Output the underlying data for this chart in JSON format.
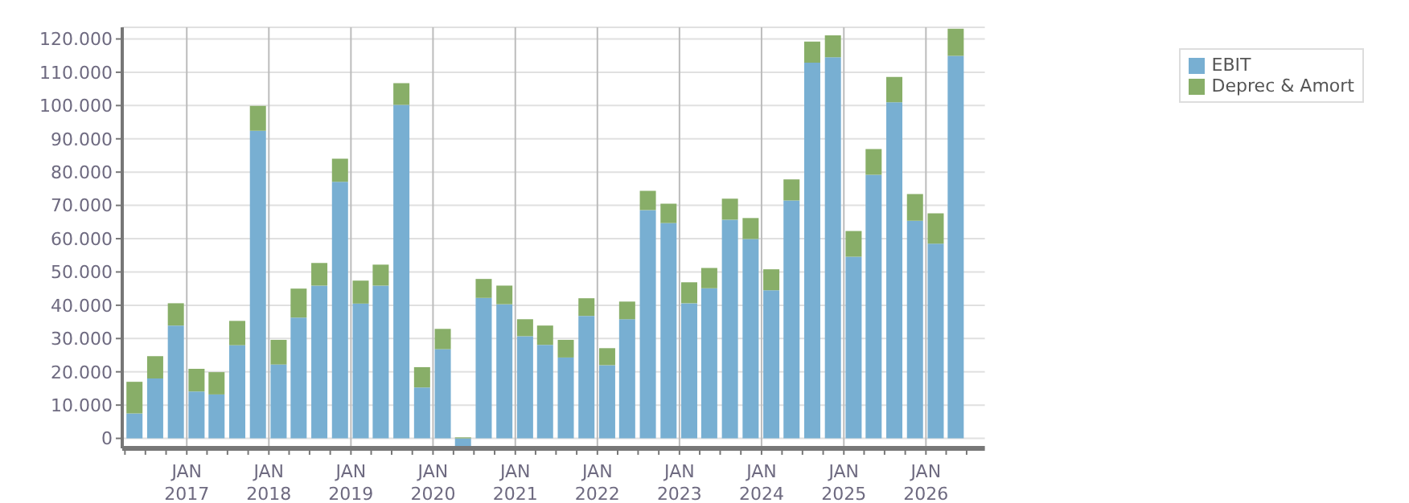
{
  "chart_data": {
    "type": "bar",
    "stacked": true,
    "x": [
      "2016-05-15",
      "2016-08-15",
      "2016-11-15",
      "2017-02-15",
      "2017-05-15",
      "2017-08-15",
      "2017-11-15",
      "2018-02-15",
      "2018-05-15",
      "2018-08-15",
      "2018-11-15",
      "2019-02-15",
      "2019-05-15",
      "2019-08-15",
      "2019-11-15",
      "2020-02-15",
      "2020-05-15",
      "2020-08-15",
      "2020-11-15",
      "2021-02-15",
      "2021-05-15",
      "2021-08-15",
      "2021-11-15",
      "2022-02-15",
      "2022-05-15",
      "2022-08-15",
      "2022-11-15",
      "2023-02-15",
      "2023-05-15",
      "2023-08-15",
      "2023-11-15",
      "2024-02-15",
      "2024-05-15",
      "2024-08-15",
      "2024-11-15",
      "2025-02-15",
      "2025-05-15",
      "2025-08-15",
      "2025-11-15",
      "2026-02-15",
      "2026-05-15"
    ],
    "series": [
      {
        "name": "EBIT",
        "color": "#78afd2",
        "values": [
          7500,
          18000,
          33900,
          14100,
          13200,
          28000,
          92400,
          22200,
          36300,
          45900,
          77100,
          40500,
          45900,
          100200,
          15300,
          26800,
          -2900,
          42200,
          40300,
          30700,
          28100,
          24300,
          36800,
          22000,
          35800,
          68600,
          64700,
          40600,
          45100,
          65700,
          59900,
          44500,
          71500,
          112900,
          114500,
          54600,
          79200,
          101000,
          65400,
          58500,
          114900
        ]
      },
      {
        "name": "Deprec & Amort",
        "color": "#88ae68",
        "values": [
          9500,
          6700,
          6700,
          6800,
          6700,
          7300,
          7500,
          7400,
          8700,
          6800,
          6900,
          6900,
          6300,
          6500,
          6100,
          6100,
          300,
          5700,
          5600,
          5100,
          5800,
          5300,
          5300,
          5100,
          5300,
          5800,
          5800,
          6300,
          6100,
          6300,
          6300,
          6300,
          6300,
          6300,
          6600,
          7700,
          7700,
          7600,
          8000,
          9100,
          8200
        ]
      }
    ],
    "xlim": [
      "2016-03-20",
      "2026-09-20"
    ],
    "xticks": [
      {
        "value": "2016-04",
        "label": null
      },
      {
        "value": "2016-07",
        "label": null
      },
      {
        "value": "2016-10",
        "label": null
      },
      {
        "value": "2017-01",
        "label": "JAN 2017"
      },
      {
        "value": "2017-04",
        "label": null
      },
      {
        "value": "2017-07",
        "label": null
      },
      {
        "value": "2017-10",
        "label": null
      },
      {
        "value": "2018-01",
        "label": "JAN 2018"
      },
      {
        "value": "2018-04",
        "label": null
      },
      {
        "value": "2018-07",
        "label": null
      },
      {
        "value": "2018-10",
        "label": null
      },
      {
        "value": "2019-01",
        "label": "JAN 2019"
      },
      {
        "value": "2019-04",
        "label": null
      },
      {
        "value": "2019-07",
        "label": null
      },
      {
        "value": "2019-10",
        "label": null
      },
      {
        "value": "2020-01",
        "label": "JAN 2020"
      },
      {
        "value": "2020-04",
        "label": null
      },
      {
        "value": "2020-07",
        "label": null
      },
      {
        "value": "2020-10",
        "label": null
      },
      {
        "value": "2021-01",
        "label": "JAN 2021"
      },
      {
        "value": "2021-04",
        "label": null
      },
      {
        "value": "2021-07",
        "label": null
      },
      {
        "value": "2021-10",
        "label": null
      },
      {
        "value": "2022-01",
        "label": "JAN 2022"
      },
      {
        "value": "2022-04",
        "label": null
      },
      {
        "value": "2022-07",
        "label": null
      },
      {
        "value": "2022-10",
        "label": null
      },
      {
        "value": "2023-01",
        "label": "JAN 2023"
      },
      {
        "value": "2023-04",
        "label": null
      },
      {
        "value": "2023-07",
        "label": null
      },
      {
        "value": "2023-10",
        "label": null
      },
      {
        "value": "2024-01",
        "label": "JAN 2024"
      },
      {
        "value": "2024-04",
        "label": null
      },
      {
        "value": "2024-07",
        "label": null
      },
      {
        "value": "2024-10",
        "label": null
      },
      {
        "value": "2025-01",
        "label": "JAN 2025"
      },
      {
        "value": "2025-04",
        "label": null
      },
      {
        "value": "2025-07",
        "label": null
      },
      {
        "value": "2025-10",
        "label": null
      },
      {
        "value": "2026-01",
        "label": "JAN 2026"
      },
      {
        "value": "2026-04",
        "label": null
      },
      {
        "value": "2026-07",
        "label": null
      }
    ],
    "ylim": [
      -3000,
      123500
    ],
    "yticks": [
      {
        "value": 0,
        "label": "0"
      },
      {
        "value": 10000,
        "label": "10.000"
      },
      {
        "value": 20000,
        "label": "20.000"
      },
      {
        "value": 30000,
        "label": "30.000"
      },
      {
        "value": 40000,
        "label": "40.000"
      },
      {
        "value": 50000,
        "label": "50.000"
      },
      {
        "value": 60000,
        "label": "60.000"
      },
      {
        "value": 70000,
        "label": "70.000"
      },
      {
        "value": 80000,
        "label": "80.000"
      },
      {
        "value": 90000,
        "label": "90.000"
      },
      {
        "value": 100000,
        "label": "100.000"
      },
      {
        "value": 110000,
        "label": "110.000"
      },
      {
        "value": 120000,
        "label": "120.000"
      }
    ],
    "grid": true,
    "legend": "top right"
  }
}
